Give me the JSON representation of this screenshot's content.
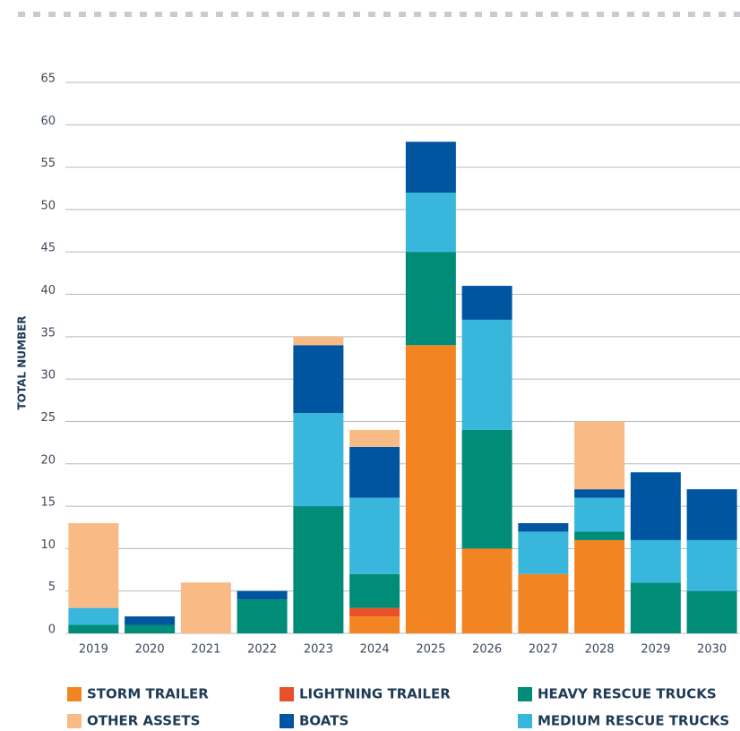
{
  "chart_data": {
    "type": "stacked_bar",
    "y_label": "TOTAL NUMBER",
    "categories": [
      "2019",
      "2020",
      "2021",
      "2022",
      "2023",
      "2024",
      "2025",
      "2026",
      "2027",
      "2028",
      "2029",
      "2030"
    ],
    "series": [
      {
        "name": "STORM TRAILER",
        "color": "#f28522",
        "values": [
          0,
          0,
          0,
          0,
          0,
          2,
          34,
          10,
          7,
          11,
          0,
          0
        ]
      },
      {
        "name": "LIGHTNING TRAILER",
        "color": "#e8522b",
        "values": [
          0,
          0,
          0,
          0,
          0,
          1,
          0,
          0,
          0,
          0,
          0,
          0
        ]
      },
      {
        "name": "HEAVY RESCUE TRUCKS",
        "color": "#008c77",
        "values": [
          1,
          1,
          0,
          4,
          15,
          4,
          11,
          14,
          0,
          1,
          6,
          5
        ]
      },
      {
        "name": "MEDIUM RESCUE TRUCKS",
        "color": "#38b6dc",
        "values": [
          2,
          0,
          0,
          0,
          11,
          9,
          7,
          13,
          5,
          4,
          5,
          6
        ]
      },
      {
        "name": "BOATS",
        "color": "#0055a0",
        "values": [
          0,
          1,
          0,
          1,
          8,
          6,
          6,
          4,
          1,
          1,
          8,
          6
        ]
      },
      {
        "name": "OTHER ASSETS",
        "color": "#f9bb86",
        "values": [
          10,
          0,
          6,
          0,
          1,
          2,
          0,
          0,
          0,
          8,
          0,
          0
        ]
      }
    ],
    "ylim": [
      0,
      65
    ],
    "yticks": [
      0,
      5,
      10,
      15,
      20,
      25,
      30,
      35,
      40,
      45,
      50,
      55,
      60,
      65
    ],
    "grid": true
  }
}
